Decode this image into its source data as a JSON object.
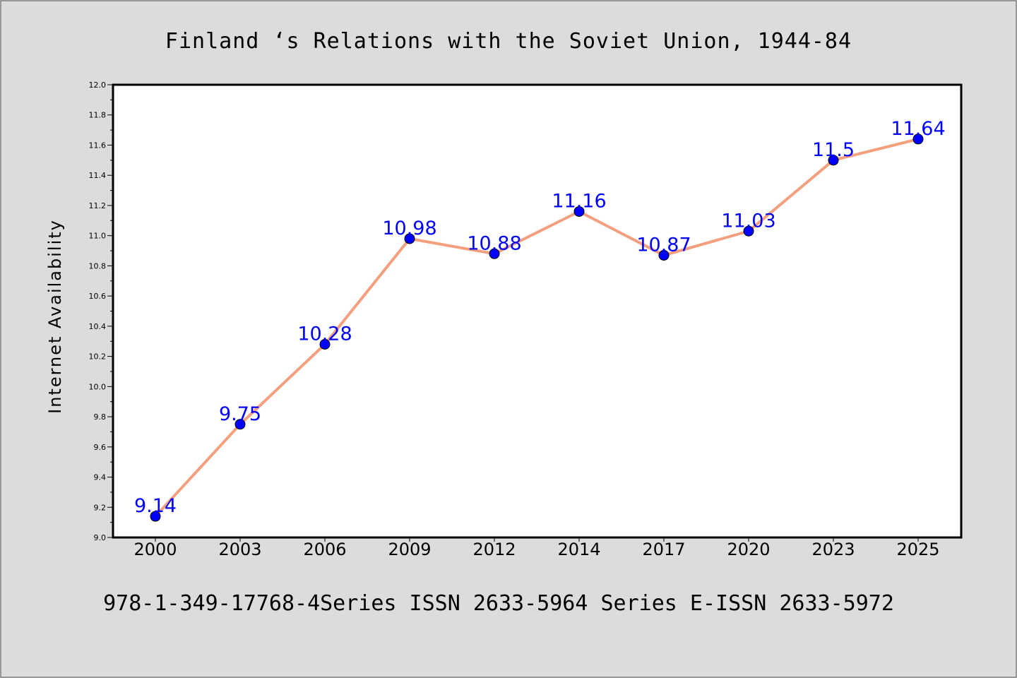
{
  "chart_data": {
    "type": "line",
    "title": "Finland ‘s Relations with the Soviet Union, 1944-84",
    "xlabel": "",
    "ylabel": "Internet Availability",
    "footer": "978-1-349-17768-4Series ISSN 2633-5964 Series E-ISSN 2633-5972",
    "categories": [
      "2000",
      "2003",
      "2006",
      "2009",
      "2012",
      "2014",
      "2017",
      "2020",
      "2023",
      "2025"
    ],
    "series": [
      {
        "values": [
          9.14,
          9.75,
          10.28,
          10.98,
          10.88,
          11.16,
          10.87,
          11.03,
          11.5,
          11.64
        ],
        "labels": [
          "9.14",
          "9.75",
          "10.28",
          "10.98",
          "10.88",
          "11.16",
          "10.87",
          "11.03",
          "11.5",
          "11.64"
        ]
      }
    ],
    "ylim": [
      9.0,
      12.0
    ],
    "yticks": [
      "9.0",
      "9.2",
      "9.4",
      "9.6",
      "9.8",
      "10.0",
      "10.2",
      "10.4",
      "10.6",
      "10.8",
      "11.0",
      "11.2",
      "11.4",
      "11.6",
      "11.8",
      "12.0"
    ],
    "grid": false,
    "colors": {
      "background": "#dcdcdc",
      "plot_background": "#ffffff",
      "line": "#f4a07e",
      "marker": "#0000ff",
      "label": "#0000ff"
    }
  }
}
